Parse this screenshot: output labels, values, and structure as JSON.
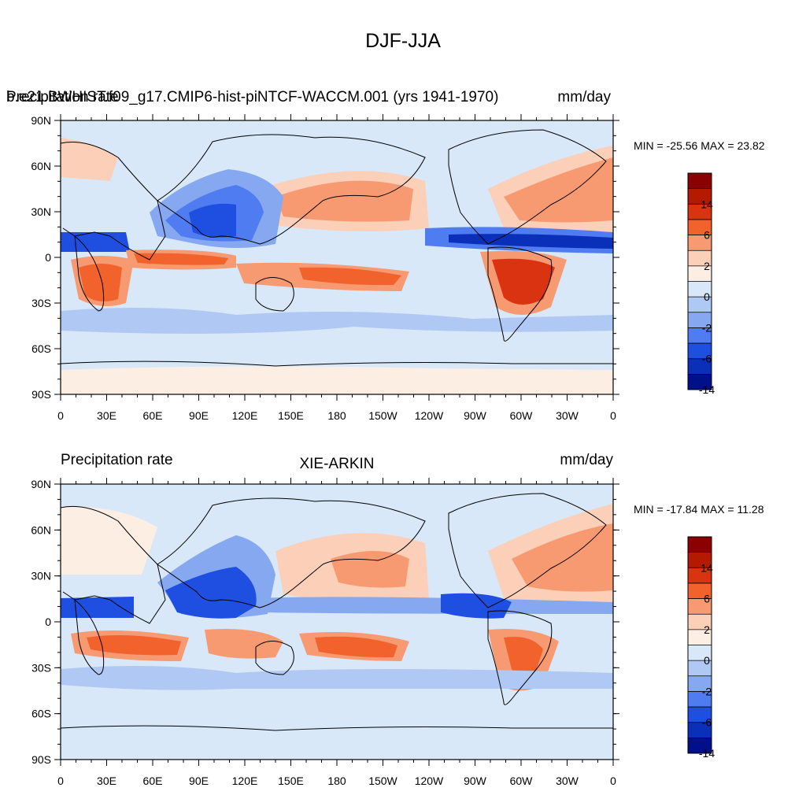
{
  "figure": {
    "title": "DJF-JJA"
  },
  "panels": [
    {
      "id": "model",
      "left_title": "Precipitation rate",
      "center_title": "b.e21.BWHIST.f09_g17.CMIP6-hist-piNTCF-WACCM.001 (yrs 1941-1970)",
      "right_title": "mm/day",
      "min_max": "MIN = -25.56 MAX =  23.82"
    },
    {
      "id": "obs",
      "left_title": "Precipitation rate",
      "center_title": "XIE-ARKIN",
      "right_title": "mm/day",
      "min_max": "MIN = -17.84 MAX =  11.28"
    }
  ],
  "axes": {
    "y_ticks": [
      "90N",
      "60N",
      "30N",
      "0",
      "30S",
      "60S",
      "90S"
    ],
    "x_ticks": [
      "0",
      "30E",
      "60E",
      "90E",
      "120E",
      "150E",
      "180",
      "150W",
      "120W",
      "90W",
      "60W",
      "30W",
      "0"
    ]
  },
  "colorbar": {
    "tick_labels": [
      "14",
      "6",
      "2",
      "0",
      "-2",
      "-6",
      "-14"
    ],
    "colors": [
      "#8b0000",
      "#b31a00",
      "#d93311",
      "#f2622c",
      "#f79a72",
      "#fcd0b8",
      "#fdeee4",
      "#d8e8f8",
      "#b0c8f4",
      "#86a8f0",
      "#4f7cf0",
      "#1f4fe0",
      "#0a2fb8",
      "#000f8a"
    ]
  },
  "chart_data": [
    {
      "type": "heatmap",
      "title": "DJF-JJA",
      "subtitle": "b.e21.BWHIST.f09_g17.CMIP6-hist-piNTCF-WACCM.001 (yrs 1941-1970)",
      "variable": "Precipitation rate",
      "units": "mm/day",
      "xlim": [
        0,
        360
      ],
      "ylim": [
        -90,
        90
      ],
      "min": -25.56,
      "max": 23.82,
      "levels": [
        -14,
        -6,
        -2,
        0,
        2,
        6,
        14
      ]
    },
    {
      "type": "heatmap",
      "title": "DJF-JJA",
      "subtitle": "XIE-ARKIN",
      "variable": "Precipitation rate",
      "units": "mm/day",
      "xlim": [
        0,
        360
      ],
      "ylim": [
        -90,
        90
      ],
      "min": -17.84,
      "max": 11.28,
      "levels": [
        -14,
        -6,
        -2,
        0,
        2,
        6,
        14
      ]
    }
  ]
}
